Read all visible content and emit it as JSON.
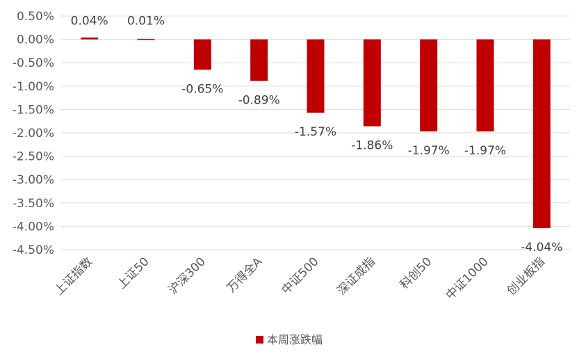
{
  "chart_data": {
    "type": "bar",
    "categories": [
      "上证指数",
      "上证50",
      "沪深300",
      "万得全A",
      "中证500",
      "深证成指",
      "科创50",
      "中证1000",
      "创业板指"
    ],
    "series": [
      {
        "name": "本周涨跌幅",
        "values": [
          0.04,
          0.01,
          -0.65,
          -0.89,
          -1.57,
          -1.86,
          -1.97,
          -1.97,
          -4.04
        ],
        "labels": [
          "0.04%",
          "0.01%",
          "-0.65%",
          "-0.89%",
          "-1.57%",
          "-1.86%",
          "-1.97%",
          "-1.97%",
          "-4.04%"
        ],
        "color": "#C00000"
      }
    ],
    "y_ticks": [
      "0.50%",
      "0.00%",
      "-0.50%",
      "-1.00%",
      "-1.50%",
      "-2.00%",
      "-2.50%",
      "-3.00%",
      "-3.50%",
      "-4.00%",
      "-4.50%"
    ],
    "ylim": [
      -4.5,
      0.5
    ],
    "grid": true,
    "legend_position": "bottom",
    "title": "",
    "xlabel": "",
    "ylabel": ""
  }
}
